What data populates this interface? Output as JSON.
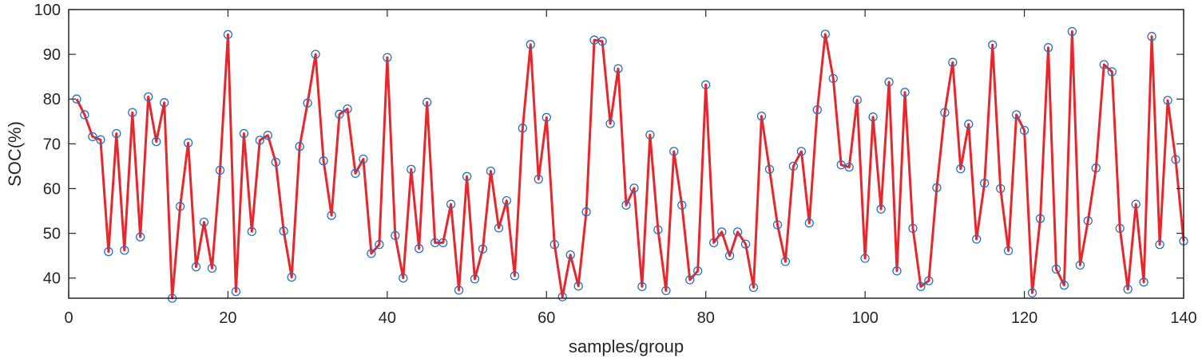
{
  "chart_data": {
    "type": "line",
    "title": "",
    "xlabel": "samples/group",
    "ylabel": "SOC(%)",
    "xlim": [
      0,
      140
    ],
    "ylim": [
      35.5,
      100
    ],
    "xticks": [
      0,
      20,
      40,
      60,
      80,
      100,
      120,
      140
    ],
    "yticks": [
      40,
      50,
      60,
      70,
      80,
      90,
      100
    ],
    "grid": false,
    "colors": {
      "line": "#e8262b",
      "marker": "#2a6fbf",
      "axis": "#262626"
    },
    "series": [
      {
        "name": "SOC",
        "marker": "circle",
        "x": [
          1,
          2,
          3,
          4,
          5,
          6,
          7,
          8,
          9,
          10,
          11,
          12,
          13,
          14,
          15,
          16,
          17,
          18,
          19,
          20,
          21,
          22,
          23,
          24,
          25,
          26,
          27,
          28,
          29,
          30,
          31,
          32,
          33,
          34,
          35,
          36,
          37,
          38,
          39,
          40,
          41,
          42,
          43,
          44,
          45,
          46,
          47,
          48,
          49,
          50,
          51,
          52,
          53,
          54,
          55,
          56,
          57,
          58,
          59,
          60,
          61,
          62,
          63,
          64,
          65,
          66,
          67,
          68,
          69,
          70,
          71,
          72,
          73,
          74,
          75,
          76,
          77,
          78,
          79,
          80,
          81,
          82,
          83,
          84,
          85,
          86,
          87,
          88,
          89,
          90,
          91,
          92,
          93,
          94,
          95,
          96,
          97,
          98,
          99,
          100,
          101,
          102,
          103,
          104,
          105,
          106,
          107,
          108,
          109,
          110,
          111,
          112,
          113,
          114,
          115,
          116,
          117,
          118,
          119,
          120,
          121,
          122,
          123,
          124,
          125,
          126,
          127,
          128,
          129,
          130,
          131,
          132,
          133,
          134,
          135,
          136,
          137,
          138,
          139,
          140
        ],
        "values": [
          80,
          76.5,
          71.6,
          70.9,
          45.9,
          72.3,
          46.2,
          77,
          49.2,
          80.5,
          70.5,
          79.2,
          35.5,
          56,
          70.2,
          42.5,
          52.5,
          42.2,
          64.1,
          94.4,
          37,
          72.3,
          50.4,
          70.8,
          71.9,
          65.9,
          50.5,
          40.2,
          69.4,
          79.1,
          90,
          66.2,
          54,
          76.6,
          77.8,
          63.4,
          66.6,
          45.5,
          47.5,
          89.3,
          49.5,
          40,
          64.3,
          46.6,
          79.3,
          47.9,
          47.9,
          56.5,
          37.3,
          62.7,
          39.8,
          46.5,
          63.9,
          51.2,
          57.3,
          40.5,
          73.5,
          92.2,
          62.1,
          75.9,
          47.5,
          35.8,
          45.2,
          38.2,
          54.8,
          93.2,
          92.9,
          74.5,
          86.8,
          56.3,
          60.1,
          38.1,
          72,
          50.8,
          37.2,
          68.3,
          56.3,
          39.6,
          41.6,
          83.2,
          47.9,
          50.3,
          45,
          50.3,
          47.6,
          37.9,
          76.2,
          64.3,
          51.9,
          43.7,
          65,
          68.3,
          52.3,
          77.6,
          94.5,
          84.6,
          65.3,
          64.8,
          79.8,
          44.4,
          76,
          55.4,
          83.8,
          41.6,
          81.5,
          51.1,
          38.1,
          39.4,
          60.2,
          77,
          88.2,
          64.4,
          74.4,
          48.7,
          61.2,
          92.1,
          60,
          46.1,
          76.5,
          73,
          36.7,
          53.3,
          91.5,
          42,
          38.4,
          95.1,
          42.9,
          52.8,
          64.6,
          87.7,
          86.1,
          51.1,
          37.5,
          56.5,
          39.1,
          94,
          47.5,
          79.7,
          66.5,
          48.3
        ]
      }
    ]
  }
}
